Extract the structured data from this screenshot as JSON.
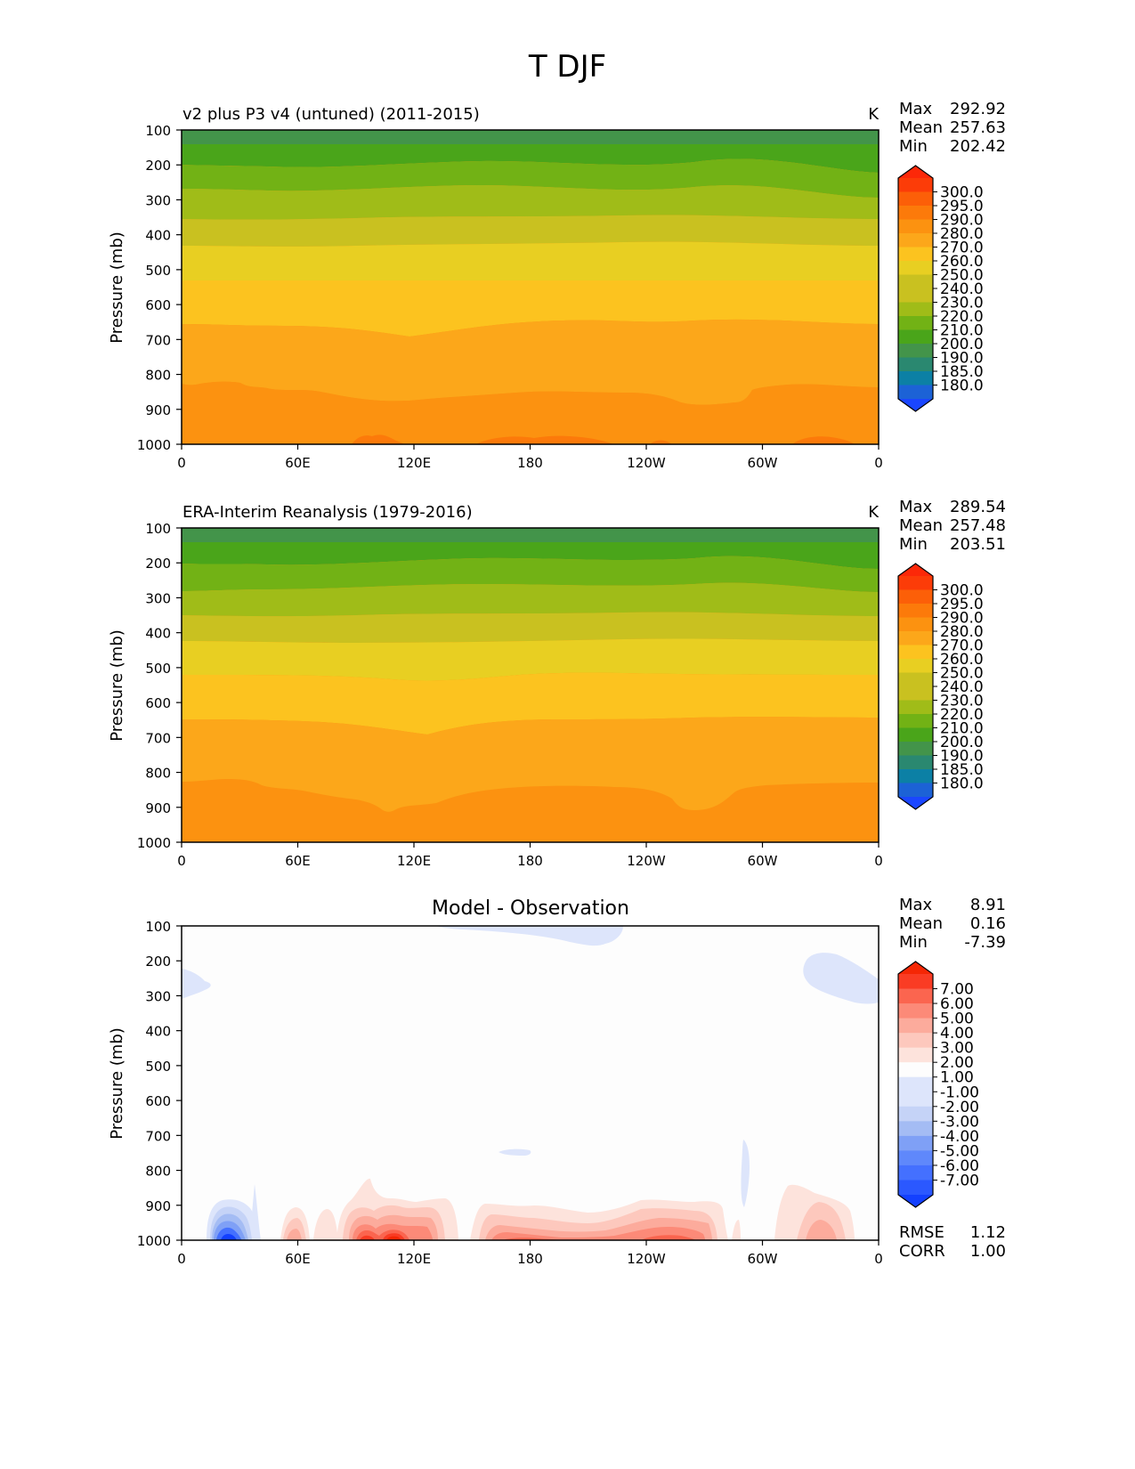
{
  "figure_title": "T DJF",
  "colors": {
    "abs_levels": [
      "#1a46ff",
      "#1c62d6",
      "#0c80a5",
      "#2a8870",
      "#43944a",
      "#4aa51a",
      "#72b215",
      "#a0bc18",
      "#c9c120",
      "#e8cf22",
      "#fcc31f",
      "#fca71a",
      "#fc9210",
      "#fc7a0a",
      "#fc5f08",
      "#fc3c08",
      "#fc2808"
    ],
    "diff_levels": [
      "#1340ff",
      "#2b58ff",
      "#4470ff",
      "#5f88fb",
      "#7fa0f6",
      "#a4bcf4",
      "#c5d3f7",
      "#dde5fb",
      "#fdfdfd",
      "#fde3dc",
      "#fdc8bd",
      "#fcab9c",
      "#fc8a78",
      "#fb654f",
      "#fa3c24",
      "#f52705"
    ],
    "frame": "#000000"
  },
  "chart_data": [
    {
      "type": "heatmap",
      "name": "model",
      "title": "v2 plus P3 v4 (untuned) (2011-2015)",
      "units": "K",
      "ylabel": "Pressure (mb)",
      "ylim": [
        1000,
        100
      ],
      "yticks": [
        "100",
        "200",
        "300",
        "400",
        "500",
        "600",
        "700",
        "800",
        "900",
        "1000"
      ],
      "xticks": [
        "0",
        "60E",
        "120E",
        "180",
        "120W",
        "60W",
        "0"
      ],
      "stats": [
        {
          "label": "Max",
          "value": "292.92"
        },
        {
          "label": "Mean",
          "value": "257.63"
        },
        {
          "label": "Min",
          "value": "202.42"
        }
      ],
      "colorbar_labels": [
        "300.0",
        "295.0",
        "290.0",
        "280.0",
        "270.0",
        "260.0",
        "250.0",
        "240.0",
        "230.0",
        "220.0",
        "210.0",
        "200.0",
        "190.0",
        "185.0",
        "180.0"
      ],
      "contour_bands_pressure": [
        {
          "fill_index": 5,
          "top": 100,
          "bottom": 140
        },
        {
          "fill_index": 6,
          "top": 140,
          "bottom": 215
        },
        {
          "fill_index": 7,
          "top": 215,
          "bottom": 280
        },
        {
          "fill_index": 8,
          "top": 280,
          "bottom": 360
        },
        {
          "fill_index": 9,
          "top": 360,
          "bottom": 430
        },
        {
          "fill_index": 10,
          "top": 430,
          "bottom": 535
        },
        {
          "fill_index": 11,
          "top": 535,
          "bottom": 680
        },
        {
          "fill_index": 12,
          "top": 680,
          "bottom": 850
        },
        {
          "fill_index": 13,
          "top": 850,
          "bottom": 1000
        }
      ]
    },
    {
      "type": "heatmap",
      "name": "obs",
      "title": "ERA-Interim Reanalysis (1979-2016)",
      "units": "K",
      "ylabel": "Pressure (mb)",
      "ylim": [
        1000,
        100
      ],
      "yticks": [
        "100",
        "200",
        "300",
        "400",
        "500",
        "600",
        "700",
        "800",
        "900",
        "1000"
      ],
      "xticks": [
        "0",
        "60E",
        "120E",
        "180",
        "120W",
        "60W",
        "0"
      ],
      "stats": [
        {
          "label": "Max",
          "value": "289.54"
        },
        {
          "label": "Mean",
          "value": "257.48"
        },
        {
          "label": "Min",
          "value": "203.51"
        }
      ],
      "colorbar_labels": [
        "300.0",
        "295.0",
        "290.0",
        "280.0",
        "270.0",
        "260.0",
        "250.0",
        "240.0",
        "230.0",
        "220.0",
        "210.0",
        "200.0",
        "190.0",
        "185.0",
        "180.0"
      ],
      "contour_bands_pressure": [
        {
          "fill_index": 5,
          "top": 100,
          "bottom": 140
        },
        {
          "fill_index": 6,
          "top": 140,
          "bottom": 215
        },
        {
          "fill_index": 7,
          "top": 215,
          "bottom": 280
        },
        {
          "fill_index": 8,
          "top": 280,
          "bottom": 355
        },
        {
          "fill_index": 9,
          "top": 355,
          "bottom": 430
        },
        {
          "fill_index": 10,
          "top": 430,
          "bottom": 530
        },
        {
          "fill_index": 11,
          "top": 530,
          "bottom": 665
        },
        {
          "fill_index": 12,
          "top": 665,
          "bottom": 850
        },
        {
          "fill_index": 13,
          "top": 850,
          "bottom": 1000
        }
      ]
    },
    {
      "type": "heatmap",
      "name": "diff",
      "title": "Model - Observation",
      "units": "",
      "ylabel": "Pressure (mb)",
      "ylim": [
        1000,
        100
      ],
      "yticks": [
        "100",
        "200",
        "300",
        "400",
        "500",
        "600",
        "700",
        "800",
        "900",
        "1000"
      ],
      "xticks": [
        "0",
        "60E",
        "120E",
        "180",
        "120W",
        "60W",
        "0"
      ],
      "stats": [
        {
          "label": "Max",
          "value": "8.91"
        },
        {
          "label": "Mean",
          "value": "0.16"
        },
        {
          "label": "Min",
          "value": "-7.39"
        }
      ],
      "colorbar_labels": [
        "7.00",
        "6.00",
        "5.00",
        "4.00",
        "3.00",
        "2.00",
        "1.00",
        "-1.00",
        "-2.00",
        "-3.00",
        "-4.00",
        "-5.00",
        "-6.00",
        "-7.00"
      ],
      "metrics": [
        {
          "label": "RMSE",
          "value": "1.12"
        },
        {
          "label": "CORR",
          "value": "1.00"
        }
      ]
    }
  ]
}
